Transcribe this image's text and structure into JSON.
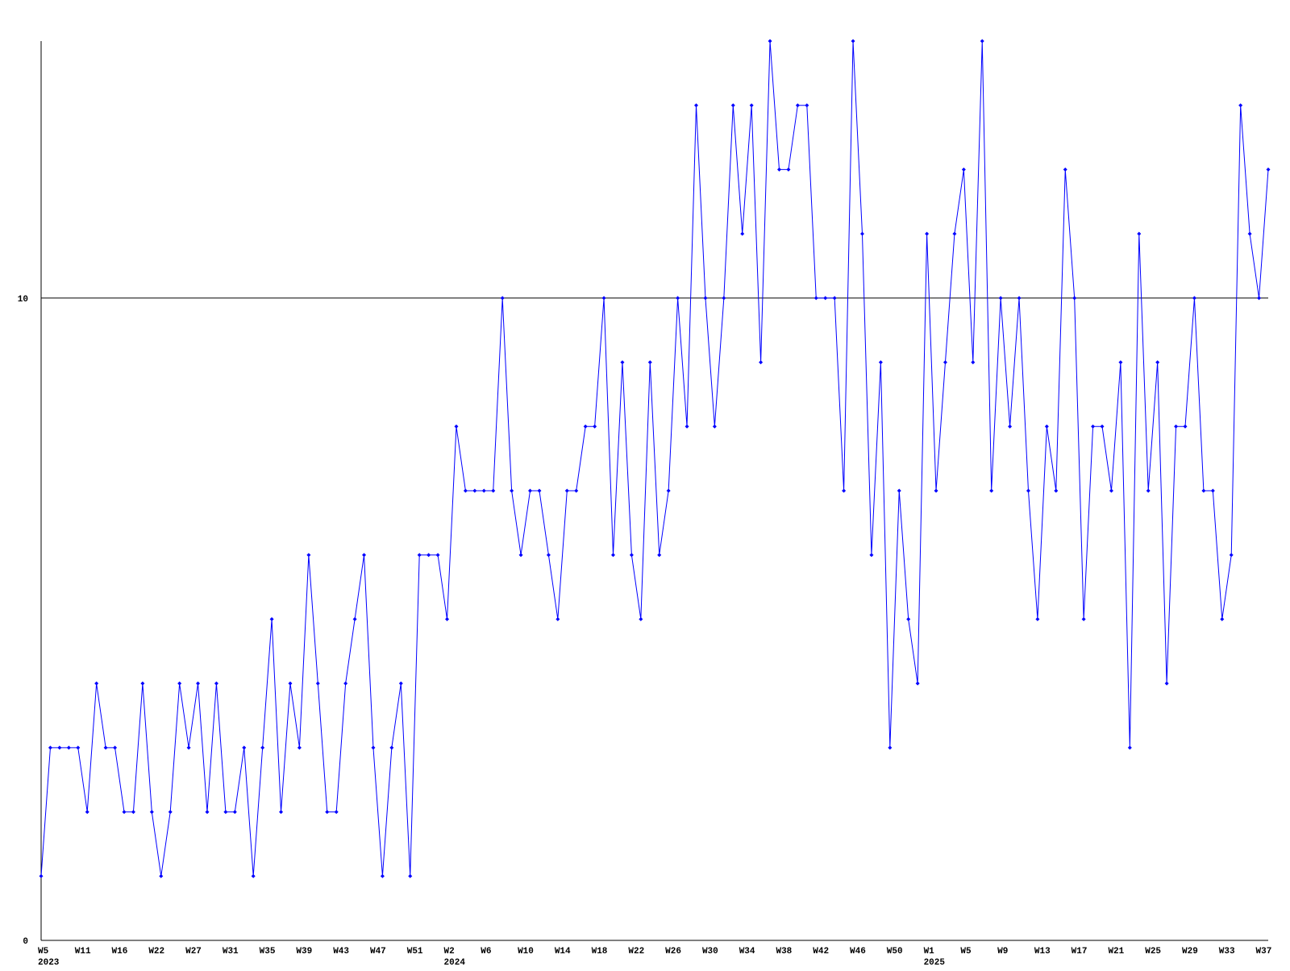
{
  "chart_data": {
    "type": "line",
    "ylim": [
      0,
      14
    ],
    "yticks": [
      0,
      10
    ],
    "grid": true,
    "color": "#0000ff",
    "categories": [
      "W5",
      null,
      null,
      null,
      "W11",
      null,
      null,
      null,
      "W16",
      null,
      null,
      null,
      "W22",
      null,
      null,
      null,
      "W27",
      null,
      null,
      null,
      "W31",
      null,
      null,
      null,
      "W35",
      null,
      null,
      null,
      "W39",
      null,
      null,
      null,
      "W43",
      null,
      null,
      null,
      "W47",
      null,
      null,
      null,
      "W51",
      null,
      null,
      null,
      "W2",
      null,
      null,
      null,
      "W6",
      null,
      null,
      null,
      "W10",
      null,
      null,
      null,
      "W14",
      null,
      null,
      null,
      "W18",
      null,
      null,
      null,
      "W22",
      null,
      null,
      null,
      "W26",
      null,
      null,
      null,
      "W30",
      null,
      null,
      null,
      "W34",
      null,
      null,
      null,
      "W38",
      null,
      null,
      null,
      "W42",
      null,
      null,
      null,
      "W46",
      null,
      null,
      null,
      "W50",
      null,
      null,
      null,
      "W1",
      null,
      null,
      null,
      "W5",
      null,
      null,
      null,
      "W9",
      null,
      null,
      null,
      "W13",
      null,
      null,
      null,
      "W17",
      null,
      null,
      null,
      "W21",
      null,
      null,
      null,
      "W25",
      null,
      null,
      null,
      "W29",
      null,
      null,
      null,
      "W33",
      null,
      null,
      null,
      "W37",
      null
    ],
    "years": [
      "2023",
      null,
      null,
      null,
      null,
      null,
      null,
      null,
      null,
      null,
      null,
      null,
      null,
      null,
      null,
      null,
      null,
      null,
      null,
      null,
      null,
      null,
      null,
      null,
      null,
      null,
      null,
      null,
      null,
      null,
      null,
      null,
      null,
      null,
      null,
      null,
      null,
      null,
      null,
      null,
      null,
      null,
      null,
      null,
      "2024",
      null,
      null,
      null,
      null,
      null,
      null,
      null,
      null,
      null,
      null,
      null,
      null,
      null,
      null,
      null,
      null,
      null,
      null,
      null,
      null,
      null,
      null,
      null,
      null,
      null,
      null,
      null,
      null,
      null,
      null,
      null,
      null,
      null,
      null,
      null,
      null,
      null,
      null,
      null,
      null,
      null,
      null,
      null,
      null,
      null,
      null,
      null,
      null,
      null,
      null,
      null,
      "2025",
      null,
      null,
      null,
      null,
      null,
      null,
      null,
      null,
      null,
      null,
      null,
      null,
      null,
      null,
      null,
      null,
      null,
      null,
      null,
      null,
      null,
      null,
      null,
      null,
      null,
      null,
      null,
      null,
      null,
      null,
      null,
      null,
      null,
      null,
      null,
      null,
      null,
      null
    ],
    "values": [
      1,
      3,
      3,
      3,
      3,
      2,
      4,
      3,
      3,
      2,
      2,
      4,
      2,
      1,
      2,
      4,
      3,
      4,
      2,
      4,
      2,
      2,
      3,
      1,
      3,
      5,
      2,
      4,
      3,
      6,
      4,
      2,
      2,
      4,
      5,
      6,
      3,
      1,
      3,
      4,
      1,
      6,
      6,
      6,
      5,
      8,
      7,
      7,
      7,
      7,
      10,
      7,
      6,
      7,
      7,
      6,
      5,
      7,
      7,
      8,
      8,
      10,
      6,
      9,
      6,
      5,
      9,
      6,
      7,
      10,
      8,
      13,
      10,
      8,
      10,
      13,
      11,
      13,
      9,
      14,
      12,
      12,
      13,
      13,
      10,
      10,
      10,
      7,
      14,
      11,
      6,
      9,
      3,
      7,
      5,
      4,
      11,
      7,
      9,
      11,
      12,
      9,
      14,
      7,
      10,
      8,
      10,
      7,
      5,
      8,
      7,
      12,
      10,
      5,
      8,
      8,
      7,
      9,
      3,
      11,
      7,
      9,
      4,
      8,
      8,
      10,
      7,
      7,
      5,
      6,
      13,
      11,
      10,
      12
    ]
  }
}
